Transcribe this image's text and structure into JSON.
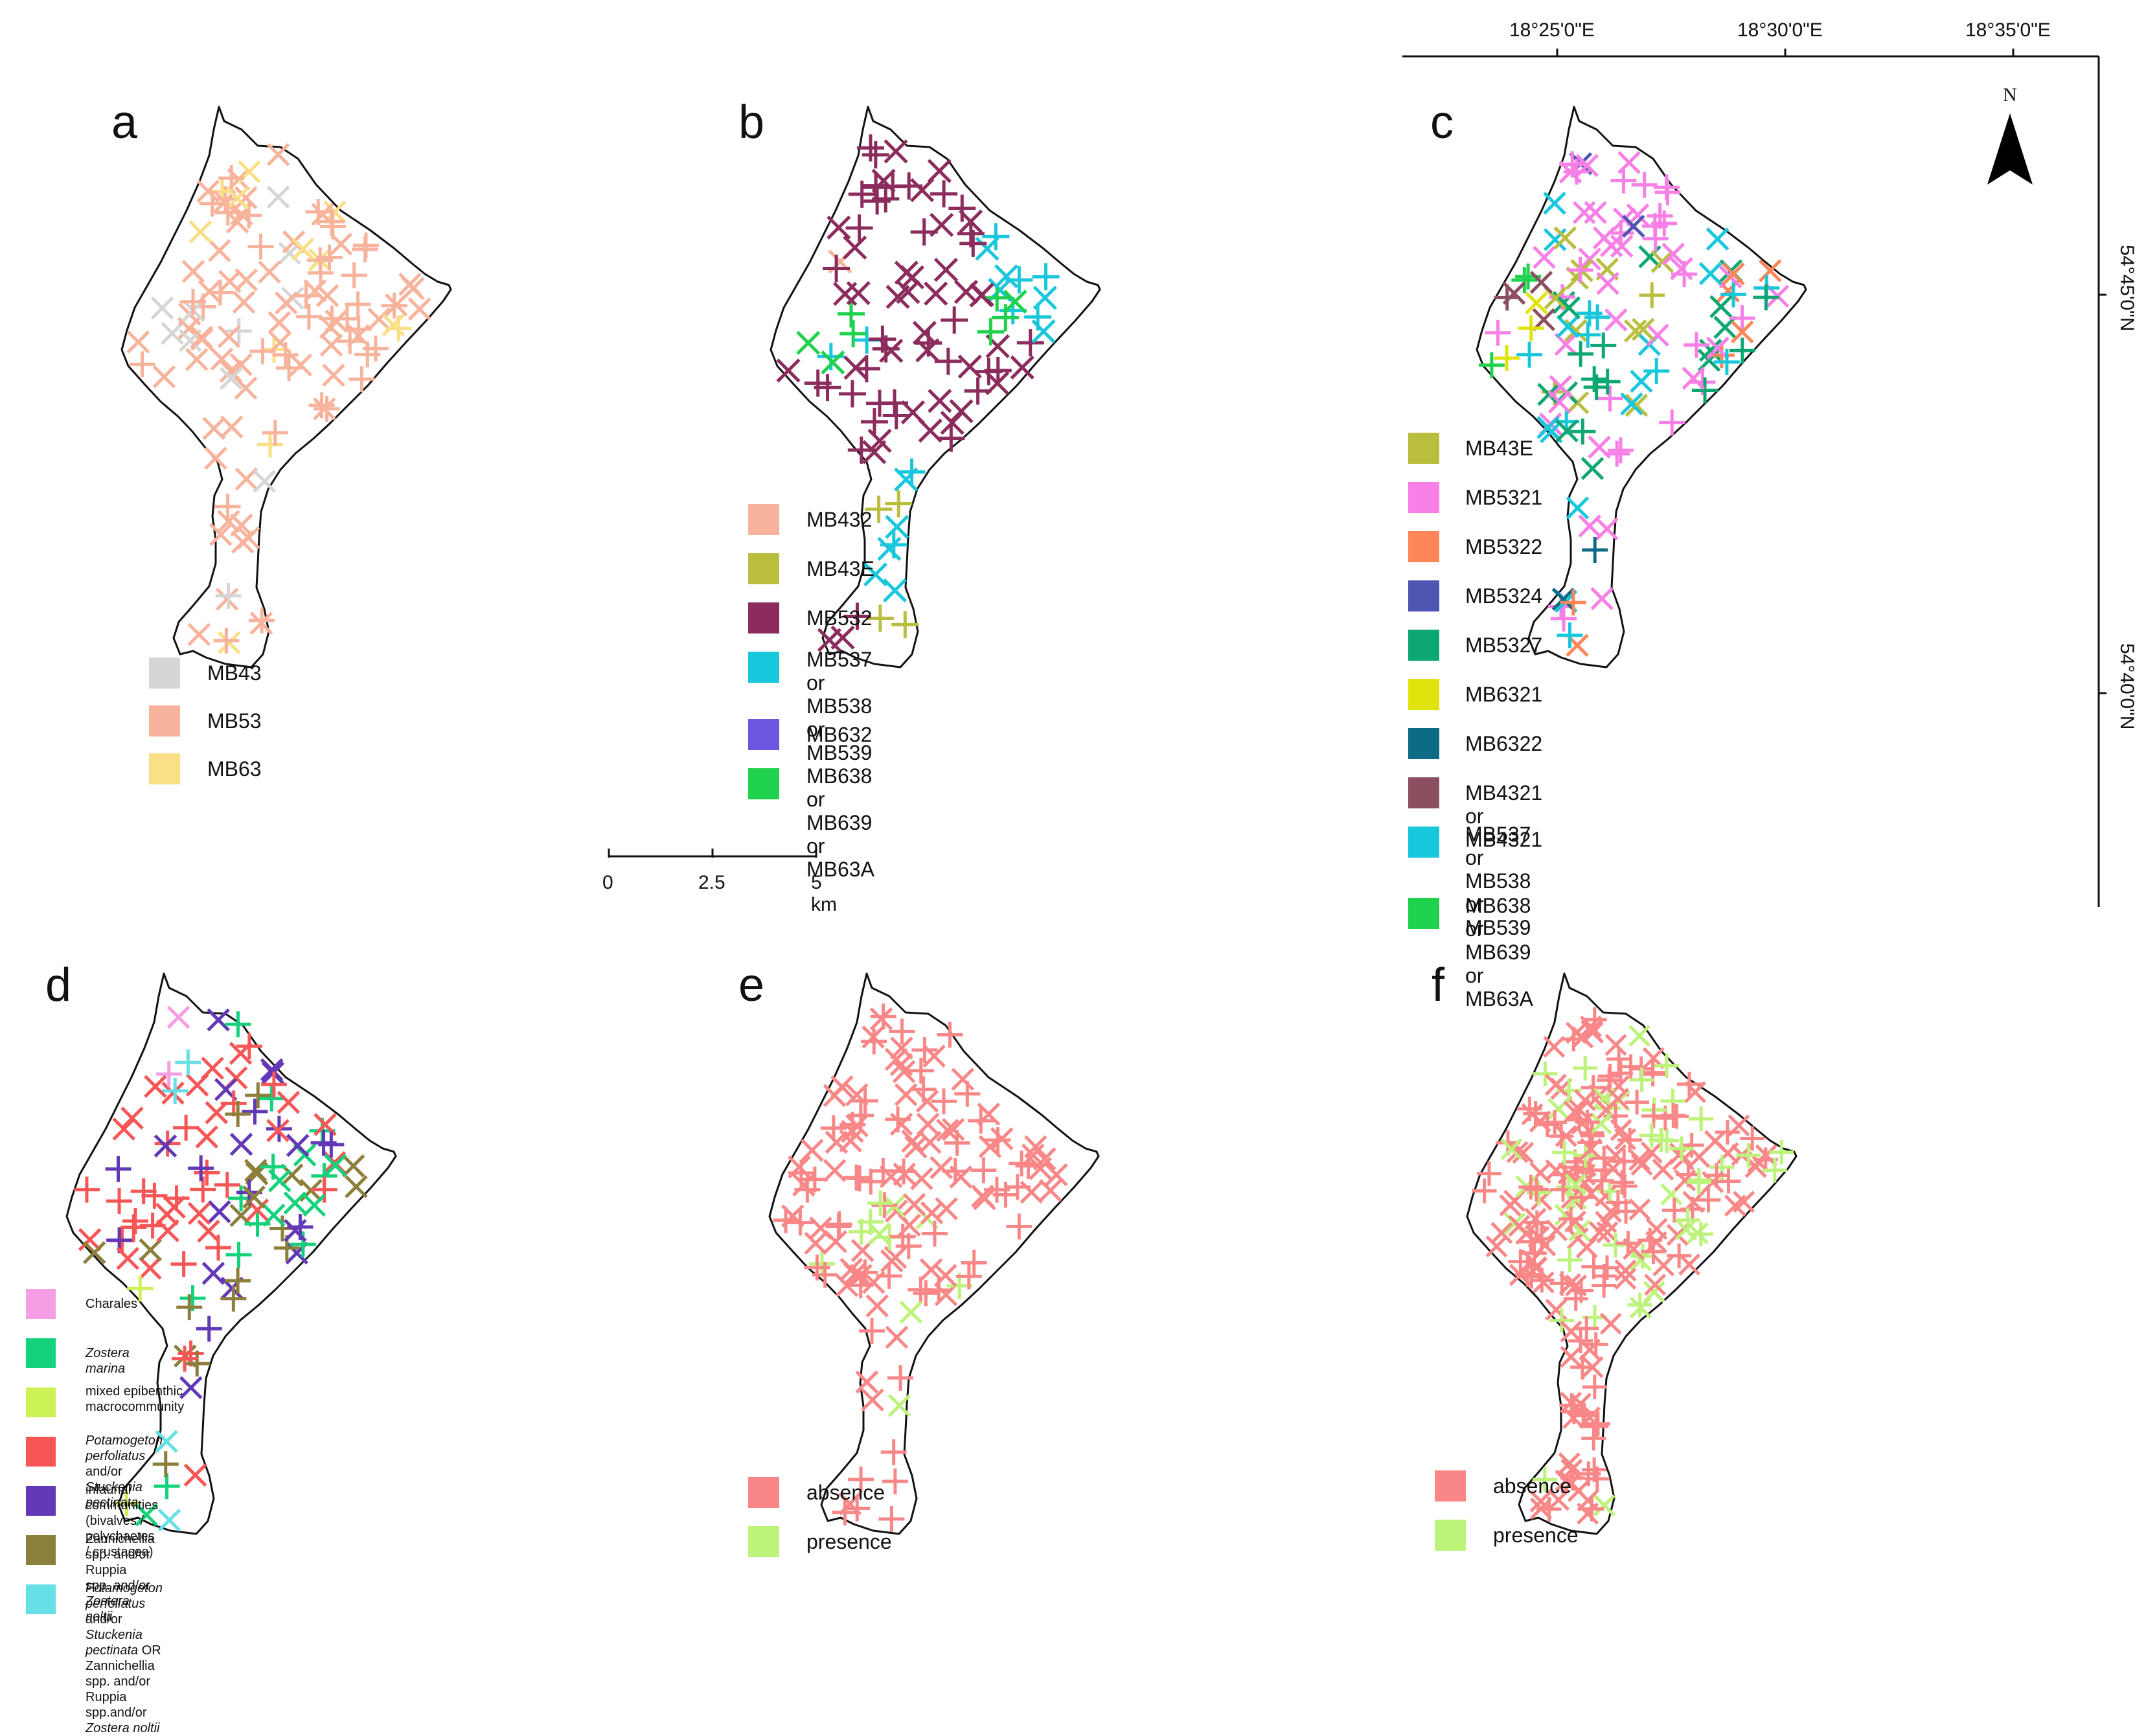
{
  "colors": {
    "outline": "#111111",
    "grey": "#d6d6d6",
    "salmon": "#f7b39b",
    "pale_yellow": "#fbdf86",
    "mb43e": "#b9be3e",
    "maroon": "#8b2c5c",
    "cyan": "#19c7dd",
    "purple": "#6a56e0",
    "green": "#1fd14c",
    "pink": "#f77fe6",
    "orange": "#ff8659",
    "blue": "#4f55b3",
    "teal": "#0ea772",
    "yellow": "#e1e40c",
    "dark_teal": "#0e6b86",
    "mauve": "#8c4f60",
    "lt_pink": "#f59ee6",
    "sea_green": "#13d27b",
    "lime": "#cdf256",
    "red": "#f75656",
    "violet": "#6238b6",
    "olive": "#8c7f3c",
    "lt_cyan": "#66dfe6",
    "absence": "#f98787",
    "presence": "#bdf37a"
  },
  "panels": [
    {
      "id": "a",
      "label": "a",
      "legend": [
        {
          "label": "MB43",
          "color_key": "grey",
          "italic": false
        },
        {
          "label": "MB53",
          "color_key": "salmon",
          "italic": false
        },
        {
          "label": "MB63",
          "color_key": "pale_yellow",
          "italic": false
        }
      ]
    },
    {
      "id": "b",
      "label": "b",
      "legend": [
        {
          "label": "MB432",
          "color_key": "salmon"
        },
        {
          "label": "MB43E",
          "color_key": "mb43e"
        },
        {
          "label": "MB532",
          "color_key": "maroon"
        },
        {
          "label": "MB537 or MB538\nor MB539",
          "color_key": "cyan"
        },
        {
          "label": "MB632",
          "color_key": "purple"
        },
        {
          "label": "MB638 or MB639\nor MB63A",
          "color_key": "green"
        }
      ]
    },
    {
      "id": "c",
      "label": "c",
      "legend": [
        {
          "label": "MB43E",
          "color_key": "mb43e"
        },
        {
          "label": "MB5321",
          "color_key": "pink"
        },
        {
          "label": "MB5322",
          "color_key": "orange"
        },
        {
          "label": "MB5324",
          "color_key": "blue"
        },
        {
          "label": "MB5327",
          "color_key": "teal"
        },
        {
          "label": "MB6321",
          "color_key": "yellow"
        },
        {
          "label": "MB6322",
          "color_key": "dark_teal"
        },
        {
          "label": "MB4321 or MB4321",
          "color_key": "mauve"
        },
        {
          "label": "MB537 or MB538 or\nMB539",
          "color_key": "cyan"
        },
        {
          "label": "MB638 or MB639 or\nMB63A",
          "color_key": "green"
        }
      ]
    },
    {
      "id": "d",
      "label": "d",
      "legend": [
        {
          "label": "Charales",
          "color_key": "lt_pink"
        },
        {
          "label": "Zostera marina",
          "color_key": "sea_green",
          "html": "<i>Zostera marina</i>"
        },
        {
          "label": "mixed epibenthic\nmacrocommunity",
          "color_key": "lime"
        },
        {
          "label": "Potamogeton perfoliatus and/or\nStuckenia pectinata",
          "color_key": "red",
          "html": "<i>Potamogeton perfoliatus</i> and/or<br><i>Stuckenia pectinata</i>"
        },
        {
          "label": "infaunal communities (bivalves /\npolychaetes / crustacea)",
          "color_key": "violet"
        },
        {
          "label": "Zannichellia spp. and/or Ruppia\nspp. and/or Zostera noltii",
          "color_key": "olive",
          "html": "Zannichellia spp. and/or Ruppia<br>spp. and/or <i>Zostera noltii</i>"
        },
        {
          "label": "Potamogeton perfoliatus and/or\nStuckenia pectinata OR\nZannichellia spp. and/or Ruppia\nspp.and/or Zostera noltii",
          "color_key": "lt_cyan",
          "html": "<i>Potamogeton perfoliatus</i> and/or<br><i>Stuckenia pectinata</i> OR<br>Zannichellia spp. and/or Ruppia<br>spp.and/or <i>Zostera noltii</i>"
        }
      ]
    },
    {
      "id": "e",
      "label": "e",
      "legend": [
        {
          "label": "absence",
          "color_key": "absence"
        },
        {
          "label": "presence",
          "color_key": "presence"
        }
      ]
    },
    {
      "id": "f",
      "label": "f",
      "legend": [
        {
          "label": "absence",
          "color_key": "absence"
        },
        {
          "label": "presence",
          "color_key": "presence"
        }
      ]
    }
  ],
  "scalebar": {
    "ticks": [
      "0",
      "2.5",
      "5 km"
    ]
  },
  "graticule": {
    "lon_labels": [
      "18°25'0\"E",
      "18°30'0\"E",
      "18°35'0\"E"
    ],
    "lat_labels": [
      "54°45'0\"N",
      "54°40'0\"N"
    ]
  },
  "north_arrow": {
    "label": "N"
  }
}
